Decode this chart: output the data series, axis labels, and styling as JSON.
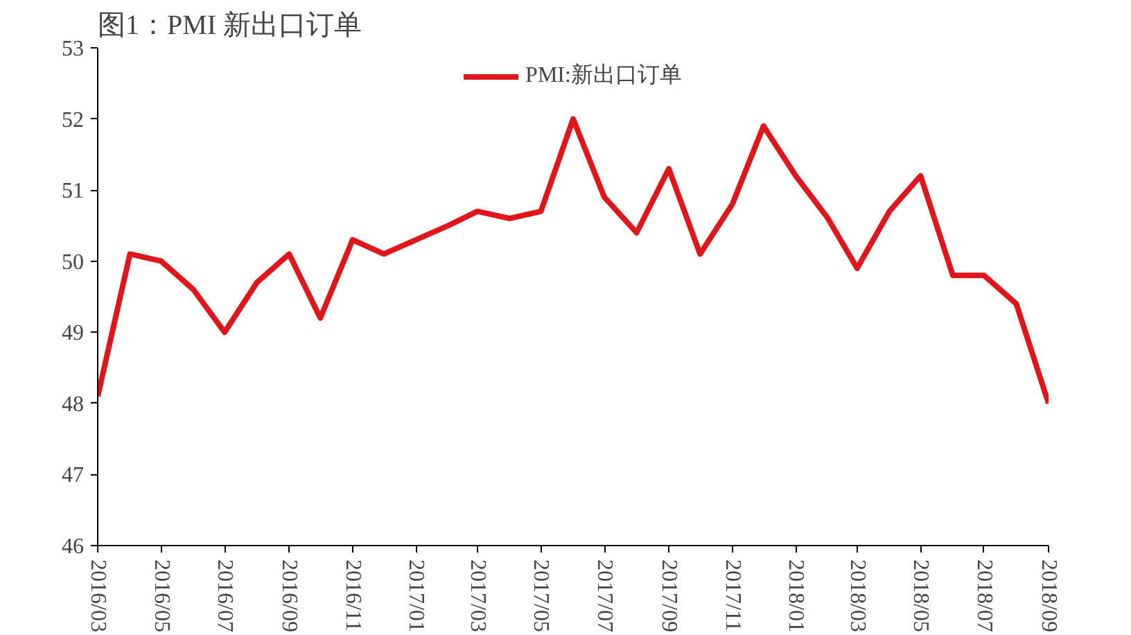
{
  "chart_data": {
    "type": "line",
    "title": "图1：PMI 新出口订单",
    "x": [
      "2016-03",
      "2016-04",
      "2016-05",
      "2016-06",
      "2016-07",
      "2016-08",
      "2016-09",
      "2016-10",
      "2016-11",
      "2016-12",
      "2017-01",
      "2017-02",
      "2017-03",
      "2017-04",
      "2017-05",
      "2017-06",
      "2017-07",
      "2017-08",
      "2017-09",
      "2017-10",
      "2017-11",
      "2017-12",
      "2018-01",
      "2018-02",
      "2018-03",
      "2018-04",
      "2018-05",
      "2018-06",
      "2018-07",
      "2018-08",
      "2018-09"
    ],
    "series": [
      {
        "name": "PMI:新出口订单",
        "color": "#e0161b",
        "values": [
          48.1,
          50.1,
          50.0,
          49.6,
          49.0,
          49.7,
          50.1,
          49.2,
          50.3,
          50.1,
          50.3,
          50.5,
          50.7,
          50.6,
          50.7,
          52.0,
          50.9,
          50.4,
          51.3,
          50.1,
          50.8,
          51.9,
          51.2,
          50.6,
          49.9,
          50.7,
          51.2,
          49.8,
          49.8,
          49.4,
          48.0
        ]
      }
    ],
    "xlim": [
      "2016-03",
      "2018-09"
    ],
    "xticks": [
      {
        "value": "2016-03",
        "label": "2016/03"
      },
      {
        "value": "2016-05",
        "label": "2016/05"
      },
      {
        "value": "2016-07",
        "label": "2016/07"
      },
      {
        "value": "2016-09",
        "label": "2016/09"
      },
      {
        "value": "2016-11",
        "label": "2016/11"
      },
      {
        "value": "2017-01",
        "label": "2017/01"
      },
      {
        "value": "2017-03",
        "label": "2017/03"
      },
      {
        "value": "2017-05",
        "label": "2017/05"
      },
      {
        "value": "2017-07",
        "label": "2017/07"
      },
      {
        "value": "2017-09",
        "label": "2017/09"
      },
      {
        "value": "2017-11",
        "label": "2017/11"
      },
      {
        "value": "2018-01",
        "label": "2018/01"
      },
      {
        "value": "2018-03",
        "label": "2018/03"
      },
      {
        "value": "2018-05",
        "label": "2018/05"
      },
      {
        "value": "2018-07",
        "label": "2018/07"
      },
      {
        "value": "2018-09",
        "label": "2018/09"
      }
    ],
    "ylim": [
      46,
      53
    ],
    "yticks": [
      46,
      47,
      48,
      49,
      50,
      51,
      52,
      53
    ],
    "grid": false,
    "legend": "top",
    "marker": "none",
    "line_style": "solid"
  }
}
